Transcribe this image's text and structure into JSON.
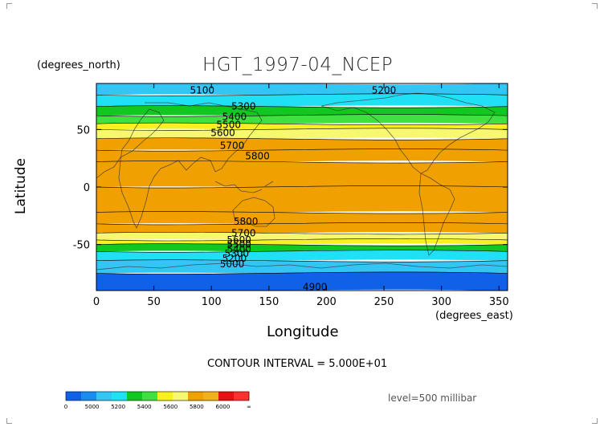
{
  "chart_data": {
    "type": "heatmap",
    "title": "HGT_1997-04_NCEP",
    "xlabel": "Longitude",
    "ylabel": "Latitude",
    "x_units": "(degrees_east)",
    "y_units": "(degrees_north)",
    "xlim": [
      0,
      357.5
    ],
    "ylim": [
      -90,
      90
    ],
    "x_ticks": [
      0,
      50,
      100,
      150,
      200,
      250,
      300,
      350
    ],
    "y_ticks": [
      50,
      0,
      -50
    ],
    "level": "level=500 millibar",
    "contour_interval_text": "CONTOUR INTERVAL = 5.000E+01",
    "colorbar": {
      "labels": [
        "0",
        "5000",
        "5200",
        "5400",
        "5600",
        "5800",
        "6000",
        "∞"
      ],
      "colors": [
        "#1060e8",
        "#1a8cf0",
        "#33c6f5",
        "#20e0f5",
        "#10c820",
        "#40e040",
        "#f8f020",
        "#f8f870",
        "#f0a000",
        "#f0b020",
        "#e81010",
        "#ff3030"
      ]
    },
    "zonal_profile": [
      {
        "lat": 90,
        "value": 5050
      },
      {
        "lat": 80,
        "value": 5150
      },
      {
        "lat": 70,
        "value": 5280
      },
      {
        "lat": 62,
        "value": 5400
      },
      {
        "lat": 55,
        "value": 5520
      },
      {
        "lat": 50,
        "value": 5600
      },
      {
        "lat": 42,
        "value": 5700
      },
      {
        "lat": 32,
        "value": 5780
      },
      {
        "lat": 22,
        "value": 5830
      },
      {
        "lat": 0,
        "value": 5870
      },
      {
        "lat": -22,
        "value": 5840
      },
      {
        "lat": -32,
        "value": 5780
      },
      {
        "lat": -40,
        "value": 5680
      },
      {
        "lat": -46,
        "value": 5560
      },
      {
        "lat": -50,
        "value": 5450
      },
      {
        "lat": -56,
        "value": 5320
      },
      {
        "lat": -64,
        "value": 5180
      },
      {
        "lat": -75,
        "value": 5020
      },
      {
        "lat": -90,
        "value": 4920
      }
    ],
    "contour_labels": [
      {
        "text": "5100",
        "lon": 92,
        "lat": 84
      },
      {
        "text": "5200",
        "lon": 250,
        "lat": 84
      },
      {
        "text": "5300",
        "lon": 128,
        "lat": 70
      },
      {
        "text": "5400",
        "lon": 120,
        "lat": 61
      },
      {
        "text": "5500",
        "lon": 115,
        "lat": 54
      },
      {
        "text": "5600",
        "lon": 110,
        "lat": 47
      },
      {
        "text": "5700",
        "lon": 118,
        "lat": 36
      },
      {
        "text": "5800",
        "lon": 140,
        "lat": 27
      },
      {
        "text": "5800",
        "lon": 130,
        "lat": -30
      },
      {
        "text": "5700",
        "lon": 128,
        "lat": -40
      },
      {
        "text": "5600",
        "lon": 124,
        "lat": -46
      },
      {
        "text": "5500",
        "lon": 124,
        "lat": -50
      },
      {
        "text": "5400",
        "lon": 124,
        "lat": -54
      },
      {
        "text": "5300",
        "lon": 122,
        "lat": -58
      },
      {
        "text": "5200",
        "lon": 120,
        "lat": -62
      },
      {
        "text": "5000",
        "lon": 118,
        "lat": -67
      },
      {
        "text": "4900",
        "lon": 190,
        "lat": -87
      }
    ]
  }
}
